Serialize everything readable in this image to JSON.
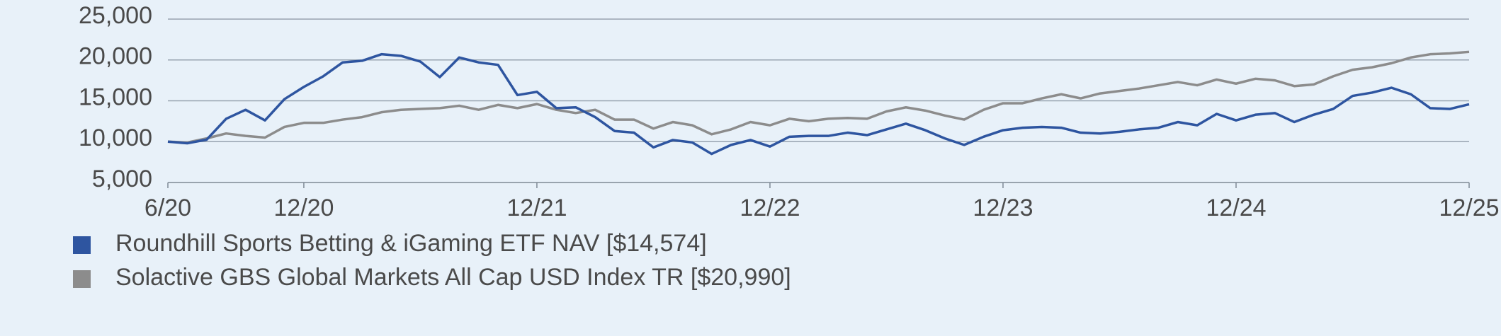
{
  "chart_data": {
    "type": "line",
    "categories": [
      "6/20",
      null,
      null,
      null,
      null,
      null,
      null,
      "12/20",
      null,
      null,
      null,
      null,
      null,
      null,
      null,
      null,
      null,
      null,
      null,
      "12/21",
      null,
      null,
      null,
      null,
      null,
      null,
      null,
      null,
      null,
      null,
      null,
      "12/22",
      null,
      null,
      null,
      null,
      null,
      null,
      null,
      null,
      null,
      null,
      null,
      "12/23",
      null,
      null,
      null,
      null,
      null,
      null,
      null,
      null,
      null,
      null,
      null,
      "12/24",
      null,
      null,
      null,
      null,
      null,
      null,
      null,
      null,
      null,
      null,
      null,
      "12/25"
    ],
    "series": [
      {
        "name": "Roundhill Sports Betting & iGaming ETF NAV [$14,574]",
        "color": "#2e55a0",
        "values": [
          10000,
          9800,
          10250,
          12800,
          13900,
          12600,
          15200,
          16700,
          18000,
          19700,
          19900,
          20700,
          20500,
          19800,
          17900,
          20300,
          19700,
          19400,
          15700,
          16100,
          14100,
          14200,
          13000,
          11300,
          11100,
          9300,
          10200,
          9900,
          8500,
          9600,
          10200,
          9400,
          10600,
          10700,
          10700,
          11100,
          10800,
          11500,
          12200,
          11400,
          10400,
          9600,
          10600,
          11400,
          11700,
          11800,
          11700,
          11100,
          11000,
          11200,
          11500,
          11700,
          12400,
          12000,
          13400,
          12600,
          13300,
          13500,
          12400,
          13300,
          14000,
          15600,
          16000,
          16600,
          15800,
          14100,
          14000,
          14574
        ]
      },
      {
        "name": "Solactive GBS Global Markets All Cap USD Index TR [$20,990]",
        "color": "#8c8c8c",
        "values": [
          10000,
          9900,
          10400,
          11000,
          10700,
          10500,
          11800,
          12300,
          12300,
          12700,
          13000,
          13600,
          13900,
          14000,
          14100,
          14400,
          13900,
          14500,
          14100,
          14600,
          13900,
          13500,
          13900,
          12700,
          12700,
          11600,
          12400,
          12000,
          10900,
          11500,
          12400,
          12000,
          12800,
          12500,
          12800,
          12900,
          12800,
          13700,
          14200,
          13800,
          13200,
          12700,
          13900,
          14700,
          14700,
          15300,
          15800,
          15300,
          15900,
          16200,
          16500,
          16900,
          17300,
          16900,
          17600,
          17100,
          17700,
          17500,
          16800,
          17000,
          18000,
          18800,
          19100,
          19600,
          20300,
          20700,
          20800,
          20990
        ]
      }
    ],
    "ylim": [
      5000,
      25000
    ],
    "yticks": [
      {
        "value": 5000,
        "label": "5,000"
      },
      {
        "value": 10000,
        "label": "10,000"
      },
      {
        "value": 15000,
        "label": "15,000"
      },
      {
        "value": 20000,
        "label": "20,000"
      },
      {
        "value": 25000,
        "label": "25,000"
      }
    ],
    "grid": true
  }
}
